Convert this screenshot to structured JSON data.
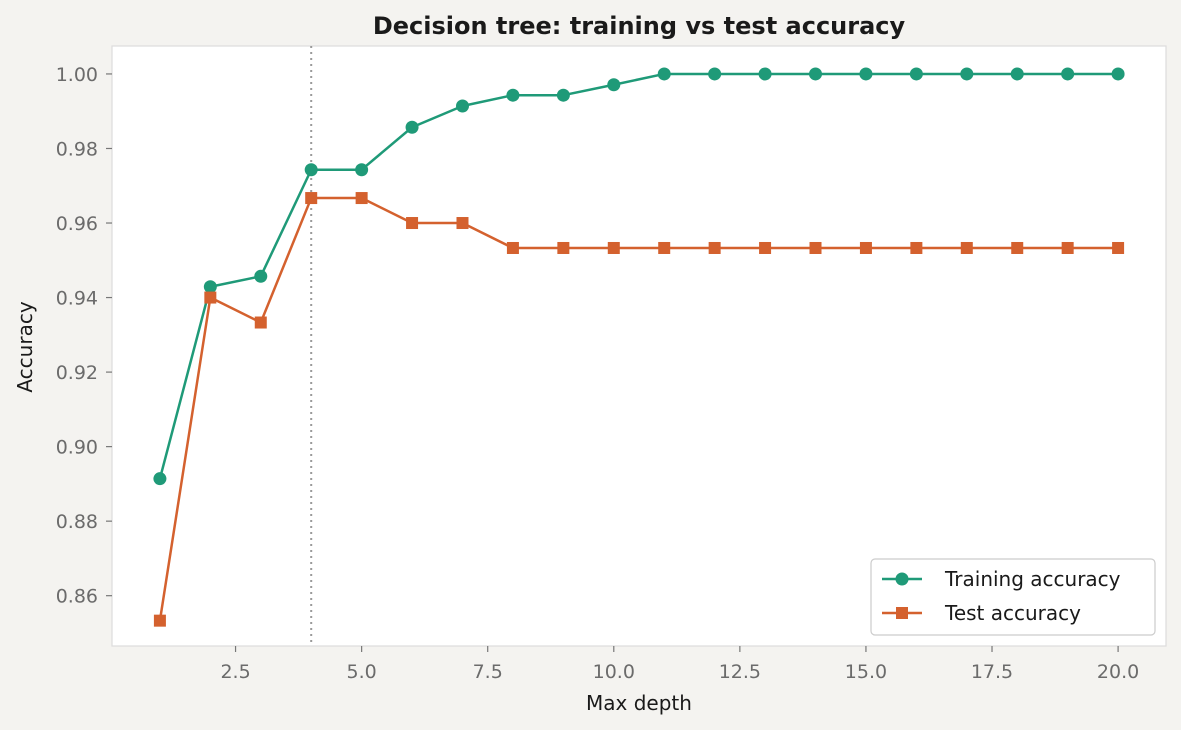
{
  "chart_data": {
    "type": "line",
    "title": "Decision tree: training vs test accuracy",
    "xlabel": "Max depth",
    "ylabel": "Accuracy",
    "xlim": [
      0.05,
      20.95
    ],
    "ylim": [
      0.8465,
      1.0075
    ],
    "xticks": [
      2.5,
      5.0,
      7.5,
      10.0,
      12.5,
      15.0,
      17.5,
      20.0
    ],
    "xtick_labels": [
      "2.5",
      "5.0",
      "7.5",
      "10.0",
      "12.5",
      "15.0",
      "17.5",
      "20.0"
    ],
    "yticks": [
      0.86,
      0.88,
      0.9,
      0.92,
      0.94,
      0.96,
      0.98,
      1.0
    ],
    "ytick_labels": [
      "0.86",
      "0.88",
      "0.90",
      "0.92",
      "0.94",
      "0.96",
      "0.98",
      "1.00"
    ],
    "grid": false,
    "legend_position": "bottom-right",
    "reference_line": {
      "x": 4,
      "style": "dotted",
      "color": "#9a9a9a"
    },
    "x": [
      1,
      2,
      3,
      4,
      5,
      6,
      7,
      8,
      9,
      10,
      11,
      12,
      13,
      14,
      15,
      16,
      17,
      18,
      19,
      20
    ],
    "series": [
      {
        "name": "Training accuracy",
        "marker": "circle",
        "color": "#1f9a78",
        "values": [
          0.8914,
          0.9429,
          0.9457,
          0.9743,
          0.9743,
          0.9857,
          0.9914,
          0.9943,
          0.9943,
          0.9971,
          1.0,
          1.0,
          1.0,
          1.0,
          1.0,
          1.0,
          1.0,
          1.0,
          1.0,
          1.0
        ]
      },
      {
        "name": "Test accuracy",
        "marker": "square",
        "color": "#d4612e",
        "values": [
          0.8533,
          0.94,
          0.9333,
          0.9667,
          0.9667,
          0.96,
          0.96,
          0.9533,
          0.9533,
          0.9533,
          0.9533,
          0.9533,
          0.9533,
          0.9533,
          0.9533,
          0.9533,
          0.9533,
          0.9533,
          0.9533,
          0.9533
        ]
      }
    ]
  }
}
